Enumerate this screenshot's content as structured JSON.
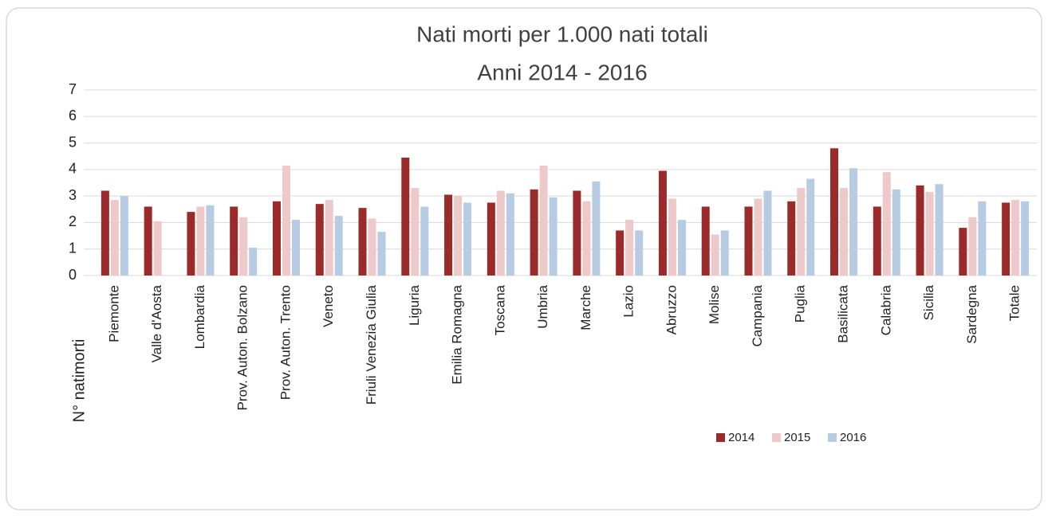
{
  "chart_data": {
    "type": "bar",
    "title": "Nati morti per 1.000 nati totali",
    "subtitle": "Anni 2014 - 2016",
    "y_label": "N° natimorti",
    "categories": [
      "Piemonte",
      "Valle d'Aosta",
      "Lombardia",
      "Prov. Auton. Bolzano",
      "Prov. Auton. Trento",
      "Veneto",
      "Friuli Venezia Giulia",
      "Liguria",
      "Emilia Romagna",
      "Toscana",
      "Umbria",
      "Marche",
      "Lazio",
      "Abruzzo",
      "Molise",
      "Campania",
      "Puglia",
      "Basilicata",
      "Calabria",
      "Sicilia",
      "Sardegna",
      "Totale"
    ],
    "series": [
      {
        "name": "2014",
        "color": "#9b2a2a",
        "values": [
          3.2,
          2.6,
          2.4,
          2.6,
          2.8,
          2.7,
          2.55,
          4.45,
          3.05,
          2.75,
          3.25,
          3.2,
          1.7,
          3.95,
          2.6,
          2.6,
          2.8,
          4.8,
          2.6,
          3.4,
          1.8,
          2.75
        ]
      },
      {
        "name": "2015",
        "color": "#eec9c9",
        "values": [
          2.85,
          2.05,
          2.6,
          2.2,
          4.15,
          2.85,
          2.15,
          3.3,
          3.0,
          3.2,
          4.15,
          2.8,
          2.1,
          2.9,
          1.55,
          2.9,
          3.3,
          3.3,
          3.9,
          3.15,
          2.2,
          2.85
        ]
      },
      {
        "name": "2016",
        "color": "#b7cce3",
        "values": [
          3.0,
          null,
          2.65,
          1.05,
          2.1,
          2.25,
          1.65,
          2.6,
          2.75,
          3.1,
          2.95,
          3.55,
          1.7,
          2.1,
          1.7,
          3.2,
          3.65,
          4.05,
          3.25,
          3.45,
          2.8,
          2.8
        ]
      }
    ],
    "ylim": [
      0,
      7
    ],
    "yticks": [
      0,
      1,
      2,
      3,
      4,
      5,
      6,
      7
    ],
    "grid": true,
    "legend": "bottom-right"
  }
}
